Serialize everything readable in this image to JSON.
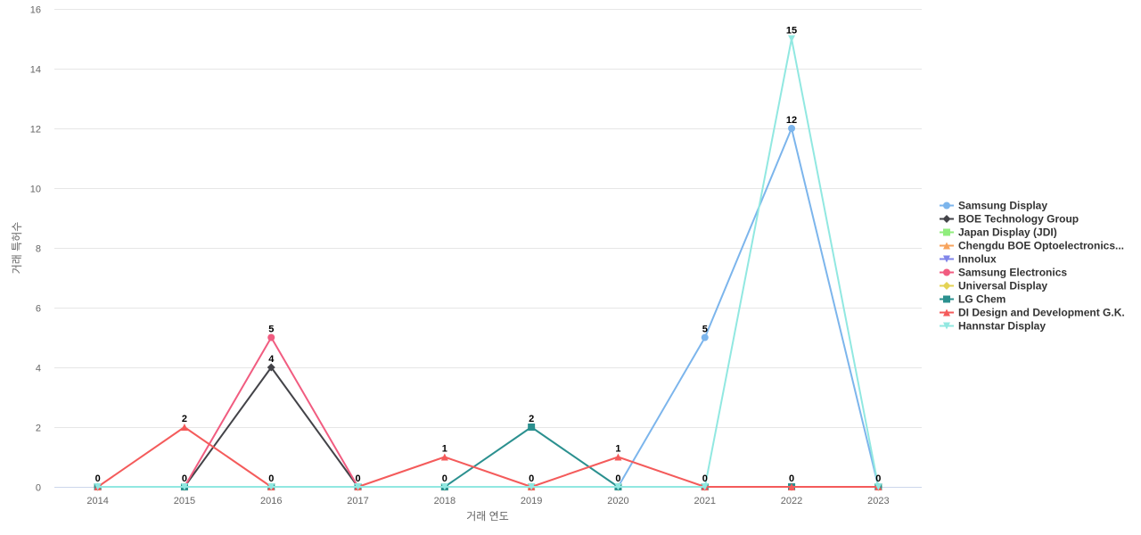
{
  "chart_data": {
    "type": "line",
    "x": [
      2014,
      2015,
      2016,
      2017,
      2018,
      2019,
      2020,
      2021,
      2022,
      2023
    ],
    "ylim": [
      0,
      16
    ],
    "yticks": [
      0,
      2,
      4,
      6,
      8,
      10,
      12,
      14,
      16
    ],
    "xlabel": "거래 연도",
    "ylabel": "거래 특허수",
    "grid": true,
    "legend_position": "right",
    "series": [
      {
        "name": "Samsung Display",
        "color": "#7cb5ec",
        "marker": "circle",
        "values": [
          0,
          0,
          0,
          0,
          0,
          0,
          0,
          5,
          12,
          0
        ]
      },
      {
        "name": "BOE Technology Group",
        "color": "#434348",
        "marker": "diamond",
        "values": [
          0,
          0,
          4,
          0,
          0,
          0,
          0,
          0,
          0,
          0
        ]
      },
      {
        "name": "Japan Display (JDI)",
        "color": "#90ed7d",
        "marker": "square",
        "values": [
          0,
          0,
          0,
          0,
          0,
          0,
          0,
          0,
          0,
          0
        ]
      },
      {
        "name": "Chengdu BOE Optoelectronics...",
        "color": "#f7a35c",
        "marker": "triangle",
        "values": [
          0,
          0,
          0,
          0,
          0,
          0,
          0,
          0,
          0,
          0
        ]
      },
      {
        "name": "Innolux",
        "color": "#8085e9",
        "marker": "triangle-down",
        "values": [
          0,
          0,
          0,
          0,
          0,
          0,
          0,
          0,
          0,
          0
        ]
      },
      {
        "name": "Samsung Electronics",
        "color": "#f15c80",
        "marker": "circle",
        "values": [
          0,
          0,
          5,
          0,
          0,
          0,
          0,
          0,
          0,
          0
        ]
      },
      {
        "name": "Universal Display",
        "color": "#e4d354",
        "marker": "diamond",
        "values": [
          0,
          0,
          0,
          0,
          0,
          0,
          0,
          0,
          0,
          0
        ]
      },
      {
        "name": "LG Chem",
        "color": "#2b908f",
        "marker": "square",
        "values": [
          0,
          0,
          0,
          0,
          0,
          2,
          0,
          0,
          0,
          0
        ]
      },
      {
        "name": "DI Design and Development G.K.",
        "color": "#f45b5b",
        "marker": "triangle",
        "values": [
          0,
          2,
          0,
          0,
          1,
          0,
          1,
          0,
          0,
          0
        ]
      },
      {
        "name": "Hannstar Display",
        "color": "#91e8e1",
        "marker": "triangle-down",
        "values": [
          0,
          0,
          0,
          0,
          0,
          0,
          0,
          0,
          15,
          0
        ]
      }
    ],
    "data_labels": [
      {
        "x": 2014,
        "series": 8,
        "text": "0"
      },
      {
        "x": 2015,
        "series": 8,
        "text": "2"
      },
      {
        "x": 2015,
        "series": 0,
        "text": "0"
      },
      {
        "x": 2016,
        "series": 5,
        "text": "5"
      },
      {
        "x": 2016,
        "series": 1,
        "text": "4"
      },
      {
        "x": 2016,
        "series": 8,
        "text": "0"
      },
      {
        "x": 2017,
        "series": 8,
        "text": "0"
      },
      {
        "x": 2018,
        "series": 8,
        "text": "1"
      },
      {
        "x": 2018,
        "series": 0,
        "text": "0"
      },
      {
        "x": 2019,
        "series": 7,
        "text": "2"
      },
      {
        "x": 2019,
        "series": 0,
        "text": "0"
      },
      {
        "x": 2020,
        "series": 8,
        "text": "1"
      },
      {
        "x": 2020,
        "series": 0,
        "text": "0"
      },
      {
        "x": 2021,
        "series": 0,
        "text": "5"
      },
      {
        "x": 2021,
        "series": 8,
        "text": "0"
      },
      {
        "x": 2022,
        "series": 9,
        "text": "15"
      },
      {
        "x": 2022,
        "series": 0,
        "text": "12"
      },
      {
        "x": 2022,
        "series": 8,
        "text": "0"
      },
      {
        "x": 2023,
        "series": 8,
        "text": "0"
      }
    ]
  }
}
